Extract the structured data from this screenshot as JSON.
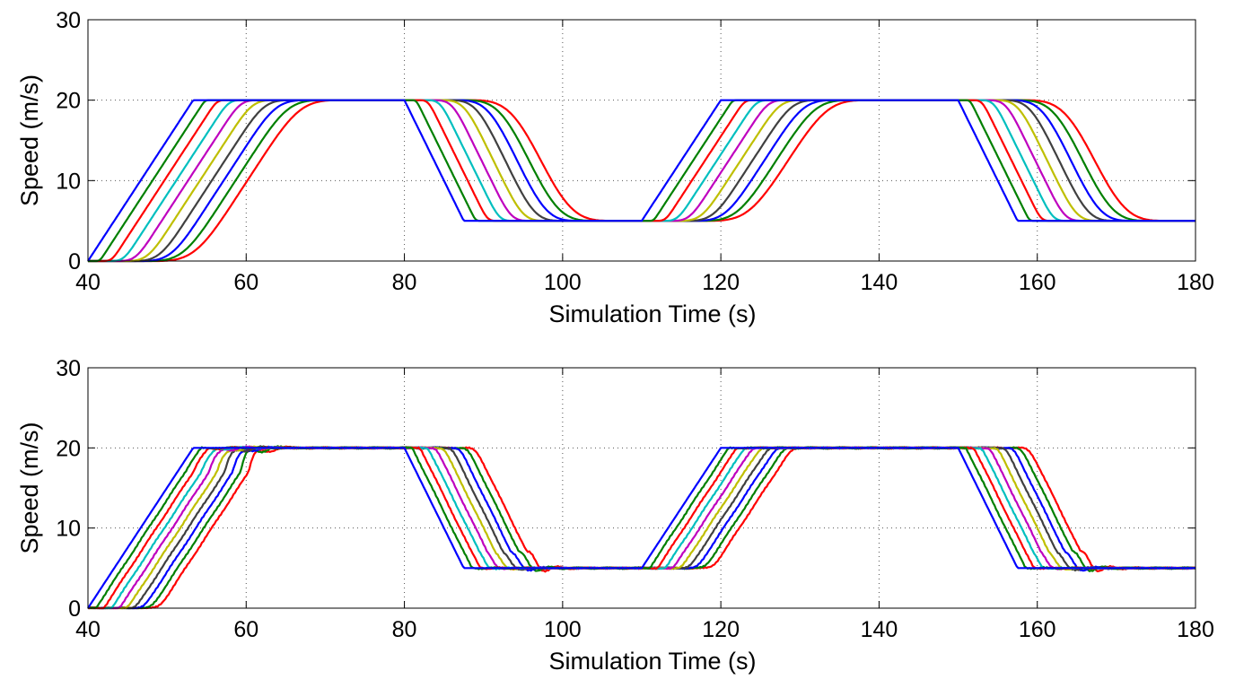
{
  "chart_data": [
    {
      "type": "line",
      "title": "",
      "xlabel": "Simulation Time (s)",
      "ylabel": "Speed (m/s)",
      "xlim": [
        40,
        180
      ],
      "ylim": [
        0,
        30
      ],
      "xticks": [
        40,
        60,
        80,
        100,
        120,
        140,
        160,
        180
      ],
      "yticks": [
        0,
        10,
        20,
        30
      ],
      "xtick_labels": [
        "40",
        "60",
        "80",
        "100",
        "120",
        "140",
        "160",
        "180"
      ],
      "ytick_labels": [
        "0",
        "10",
        "20",
        "30"
      ],
      "grid": true,
      "legend": "none",
      "oscillation": false,
      "profile": {
        "low_speed": 5,
        "high_speed": 20,
        "accel_start": 40,
        "accel_end": 53.3,
        "decel_start": 80,
        "decel_end": 87.5,
        "accel2_start": 110,
        "accel2_end": 120,
        "decel2_start": 150,
        "decel2_end": 157.5
      },
      "series": [
        {
          "color": "#0000ff",
          "delay": 0
        },
        {
          "color": "#008000",
          "delay": 1.5
        },
        {
          "color": "#ff0000",
          "delay": 3.0
        },
        {
          "color": "#00bfbf",
          "delay": 4.5
        },
        {
          "color": "#bf00bf",
          "delay": 6.0
        },
        {
          "color": "#bfbf00",
          "delay": 7.5
        },
        {
          "color": "#404040",
          "delay": 9.0
        },
        {
          "color": "#0000ff",
          "delay": 10.5
        },
        {
          "color": "#008000",
          "delay": 12.0
        },
        {
          "color": "#ff0000",
          "delay": 13.5
        }
      ]
    },
    {
      "type": "line",
      "title": "",
      "xlabel": "Simulation Time (s)",
      "ylabel": "Speed (m/s)",
      "xlim": [
        40,
        180
      ],
      "ylim": [
        0,
        30
      ],
      "xticks": [
        40,
        60,
        80,
        100,
        120,
        140,
        160,
        180
      ],
      "yticks": [
        0,
        10,
        20,
        30
      ],
      "xtick_labels": [
        "40",
        "60",
        "80",
        "100",
        "120",
        "140",
        "160",
        "180"
      ],
      "ytick_labels": [
        "0",
        "10",
        "20",
        "30"
      ],
      "grid": true,
      "legend": "none",
      "oscillation": true,
      "profile": {
        "low_speed": 5,
        "high_speed": 20,
        "accel_start": 40,
        "accel_end": 53.3,
        "decel_start": 80,
        "decel_end": 87.5,
        "accel2_start": 110,
        "accel2_end": 120,
        "decel2_start": 150,
        "decel2_end": 157.5
      },
      "series": [
        {
          "color": "#0000ff",
          "delay": 0
        },
        {
          "color": "#008000",
          "delay": 1.0
        },
        {
          "color": "#ff0000",
          "delay": 2.0
        },
        {
          "color": "#00bfbf",
          "delay": 3.0
        },
        {
          "color": "#bf00bf",
          "delay": 4.0
        },
        {
          "color": "#bfbf00",
          "delay": 5.0
        },
        {
          "color": "#404040",
          "delay": 6.0
        },
        {
          "color": "#0000ff",
          "delay": 7.0
        },
        {
          "color": "#008000",
          "delay": 8.0
        },
        {
          "color": "#ff0000",
          "delay": 9.0
        }
      ]
    }
  ]
}
